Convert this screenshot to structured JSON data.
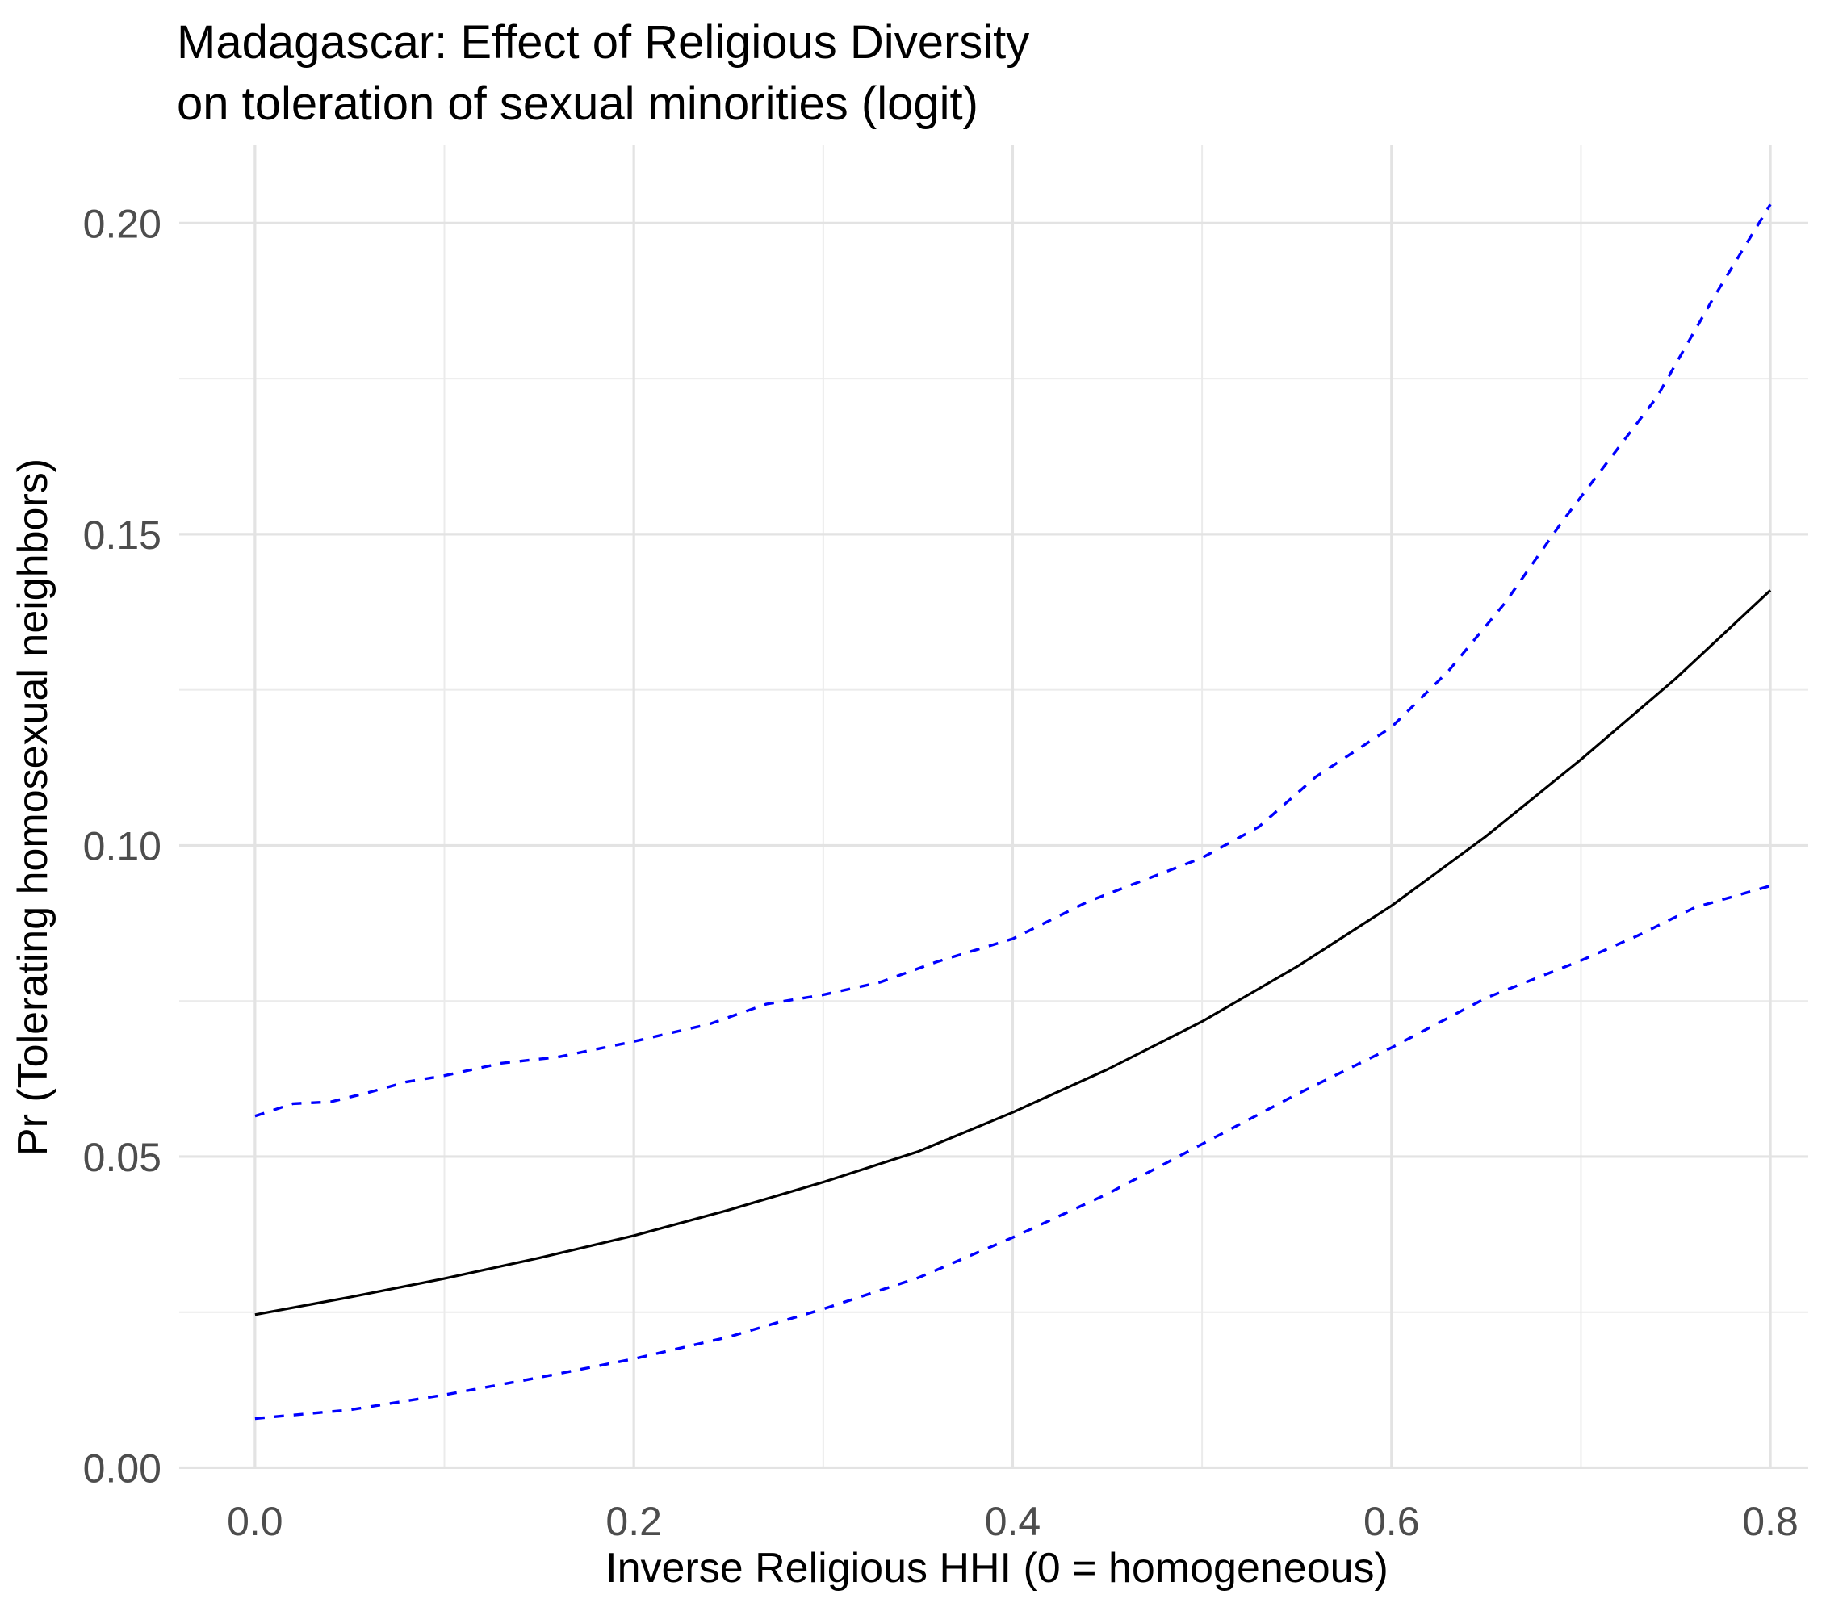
{
  "chart_data": {
    "type": "line",
    "title": "Madagascar: Effect of Religious Diversity",
    "subtitle": "on toleration of sexual minorities (logit)",
    "xlabel": "Inverse Religious HHI (0 = homogeneous)",
    "ylabel": "Pr (Tolerating homosexual neighbors)",
    "xlim": [
      -0.04,
      0.82
    ],
    "ylim": [
      -0.0002,
      0.2125
    ],
    "xticks": [
      0.0,
      0.2,
      0.4,
      0.6,
      0.8
    ],
    "xtick_labels": [
      "0.0",
      "0.2",
      "0.4",
      "0.6",
      "0.8"
    ],
    "yticks": [
      0.0,
      0.05,
      0.1,
      0.15,
      0.2
    ],
    "ytick_labels": [
      "0.00",
      "0.05",
      "0.10",
      "0.15",
      "0.20"
    ],
    "grid": true,
    "legend": "none",
    "series": [
      {
        "style": "solid",
        "color": "#000000",
        "x": [
          0.0,
          0.05,
          0.1,
          0.15,
          0.2,
          0.25,
          0.3,
          0.35,
          0.4,
          0.45,
          0.5,
          0.55,
          0.6,
          0.65,
          0.7,
          0.75,
          0.8
        ],
        "y": [
          0.0246,
          0.0274,
          0.0304,
          0.0337,
          0.0373,
          0.0414,
          0.0459,
          0.0508,
          0.0571,
          0.064,
          0.0717,
          0.0805,
          0.0903,
          0.1015,
          0.1138,
          0.1268,
          0.141
        ]
      },
      {
        "style": "dashed",
        "color": "#0000ff",
        "x": [
          0.0,
          0.02,
          0.04,
          0.06,
          0.08,
          0.1,
          0.13,
          0.16,
          0.2,
          0.24,
          0.27,
          0.3,
          0.33,
          0.36,
          0.4,
          0.44,
          0.47,
          0.5,
          0.53,
          0.56,
          0.6,
          0.63,
          0.66,
          0.69,
          0.71,
          0.74,
          0.77,
          0.8
        ],
        "y": [
          0.0565,
          0.0585,
          0.0588,
          0.0603,
          0.062,
          0.063,
          0.065,
          0.066,
          0.0685,
          0.0713,
          0.0745,
          0.076,
          0.078,
          0.0813,
          0.085,
          0.091,
          0.0945,
          0.098,
          0.103,
          0.111,
          0.119,
          0.128,
          0.139,
          0.152,
          0.16,
          0.172,
          0.188,
          0.203
        ]
      },
      {
        "style": "dashed",
        "color": "#0000ff",
        "x": [
          0.0,
          0.05,
          0.1,
          0.15,
          0.2,
          0.25,
          0.3,
          0.35,
          0.4,
          0.45,
          0.5,
          0.55,
          0.6,
          0.65,
          0.7,
          0.73,
          0.76,
          0.8
        ],
        "y": [
          0.0079,
          0.0093,
          0.0117,
          0.0145,
          0.0175,
          0.021,
          0.0255,
          0.0305,
          0.037,
          0.044,
          0.052,
          0.06,
          0.0675,
          0.0755,
          0.0815,
          0.0855,
          0.09,
          0.0935
        ]
      }
    ]
  }
}
